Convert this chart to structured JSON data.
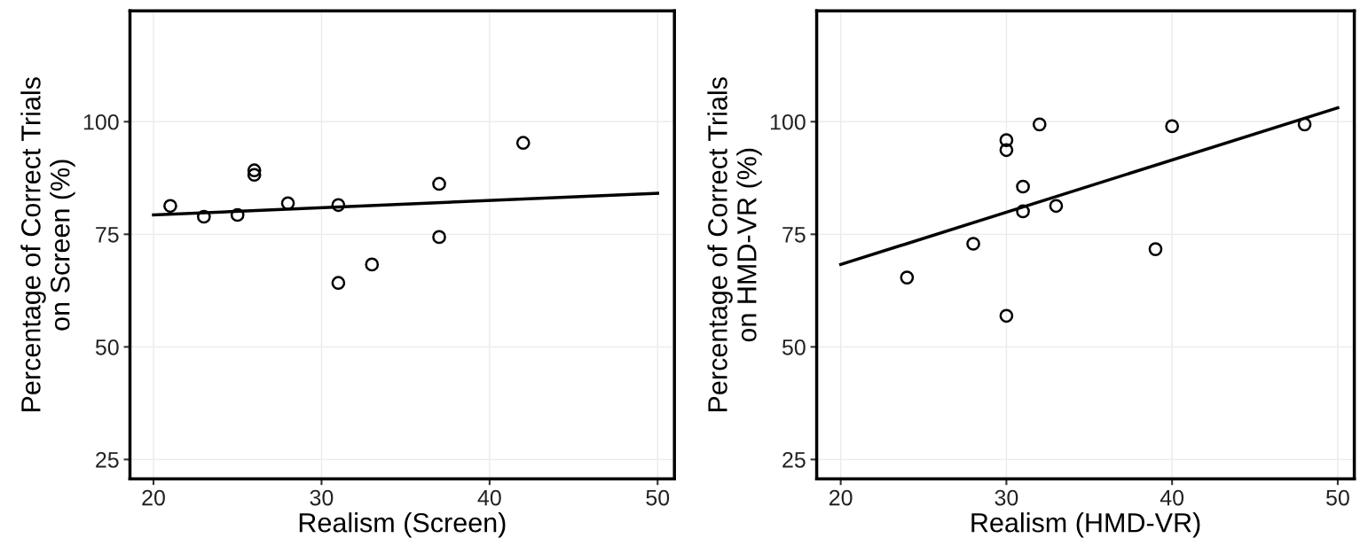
{
  "chart_data": [
    {
      "type": "scatter",
      "xlabel": "Realism (Screen)",
      "ylabel": "Percentage of Correct Trials\non Screen (%)",
      "grid": true,
      "xlim": [
        18.6,
        51.0
      ],
      "xticks": [
        20,
        30,
        40,
        50
      ],
      "ylim": [
        20.7,
        124.6
      ],
      "yticks": [
        25,
        50,
        75,
        100
      ],
      "series": [
        {
          "marker": "circle",
          "color": "#000000",
          "x": [
            21,
            23,
            25,
            26,
            26,
            28,
            31,
            31,
            33,
            37,
            37,
            42
          ],
          "values": [
            81.3,
            78.9,
            79.3,
            89.2,
            88.2,
            81.9,
            81.5,
            64.2,
            68.3,
            86.2,
            74.4,
            95.3
          ]
        },
        {
          "type": "line",
          "color": "#000000",
          "x": [
            20,
            50
          ],
          "values": [
            79.3,
            84.1
          ]
        }
      ]
    },
    {
      "type": "scatter",
      "xlabel": "Realism (HMD-VR)",
      "ylabel": "Percentage of Correct Trials\non HMD-VR (%)",
      "grid": true,
      "xlim": [
        18.55,
        51.0
      ],
      "xticks": [
        20,
        30,
        40,
        50
      ],
      "ylim": [
        20.7,
        124.6
      ],
      "yticks": [
        25,
        50,
        75,
        100
      ],
      "series": [
        {
          "marker": "circle",
          "color": "#000000",
          "x": [
            24,
            28,
            30,
            30,
            30,
            32,
            31,
            31,
            33,
            39,
            40,
            48
          ],
          "values": [
            65.4,
            72.9,
            95.9,
            93.7,
            56.9,
            99.4,
            85.6,
            80.1,
            81.3,
            71.7,
            99.0,
            99.4
          ]
        },
        {
          "type": "line",
          "color": "#000000",
          "x": [
            20,
            50
          ],
          "values": [
            68.3,
            103.1
          ]
        }
      ]
    }
  ]
}
